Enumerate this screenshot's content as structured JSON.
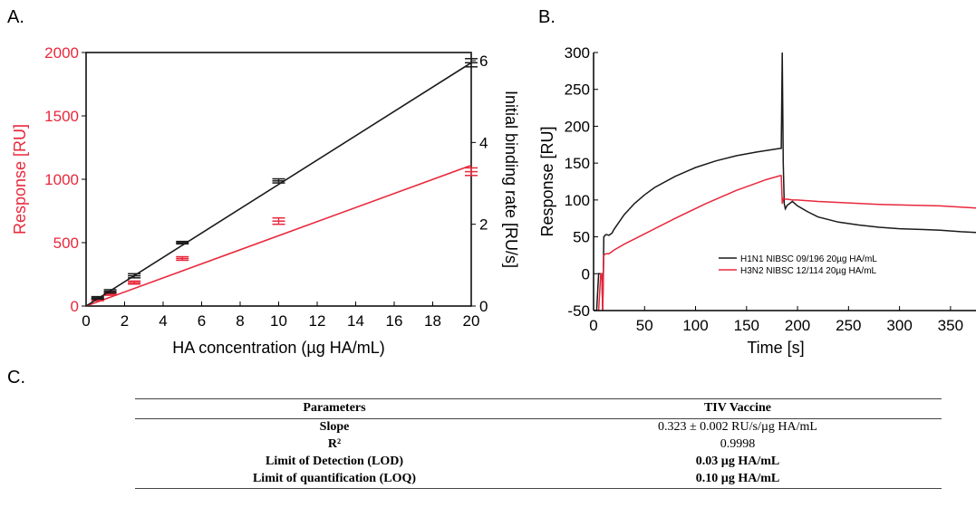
{
  "panels": {
    "a": "A.",
    "b": "B.",
    "c": "C."
  },
  "chart_data": [
    {
      "id": "A",
      "type": "line",
      "xlabel": "HA concentration (µg HA/mL)",
      "ylabel": "Response [RU]",
      "y2label": "Initial binding rate [RU/s]",
      "xlim": [
        0,
        20
      ],
      "ylim": [
        0,
        2000
      ],
      "y2lim": [
        0,
        6.2
      ],
      "xticks": [
        0,
        2,
        4,
        6,
        8,
        10,
        12,
        14,
        16,
        18,
        20
      ],
      "yticks": [
        0,
        500,
        1000,
        1500,
        2000
      ],
      "y2ticks": [
        0,
        2,
        4,
        6
      ],
      "colors": {
        "response": "#e8283c",
        "rate": "#1a1a1a"
      },
      "series": [
        {
          "axis": "left",
          "color": "#e8283c",
          "points": [
            {
              "x": 0.6,
              "y": 50,
              "err": 8
            },
            {
              "x": 1.25,
              "y": 95,
              "err": 10
            },
            {
              "x": 2.5,
              "y": 185,
              "err": 12
            },
            {
              "x": 5,
              "y": 375,
              "err": 14
            },
            {
              "x": 10,
              "y": 670,
              "err": 25
            },
            {
              "x": 20,
              "y": 1060,
              "err": 30
            }
          ],
          "fit": [
            [
              0,
              0
            ],
            [
              20,
              1110
            ]
          ]
        },
        {
          "axis": "right",
          "color": "#1a1a1a",
          "points": [
            {
              "x": 0.6,
              "y": 0.2,
              "err": 0.03
            },
            {
              "x": 1.25,
              "y": 0.36,
              "err": 0.04
            },
            {
              "x": 2.5,
              "y": 0.74,
              "err": 0.05
            },
            {
              "x": 5,
              "y": 1.55,
              "err": 0.03
            },
            {
              "x": 10,
              "y": 3.06,
              "err": 0.05
            },
            {
              "x": 20,
              "y": 5.95,
              "err": 0.1
            }
          ],
          "fit": [
            [
              0,
              0
            ],
            [
              20,
              5.95
            ]
          ]
        }
      ]
    },
    {
      "id": "B",
      "type": "line",
      "xlabel": "Time [s]",
      "ylabel": "Response [RU]",
      "xlim": [
        0,
        375
      ],
      "ylim": [
        -50,
        300
      ],
      "xticks": [
        0,
        50,
        100,
        150,
        200,
        250,
        300,
        350
      ],
      "yticks": [
        -50,
        0,
        50,
        100,
        150,
        200,
        250,
        300
      ],
      "legend_placement": "center-right",
      "series": [
        {
          "name": "H1N1 NIBSC 09/196 20µg HA/mL",
          "color": "#1a1a1a",
          "x": [
            0,
            3,
            5,
            8,
            9,
            10,
            12,
            13,
            15,
            18,
            20,
            25,
            30,
            40,
            50,
            60,
            80,
            100,
            120,
            140,
            160,
            183,
            184,
            185,
            186,
            187,
            188,
            190,
            195,
            200,
            210,
            220,
            240,
            260,
            280,
            300,
            320,
            340,
            360,
            375
          ],
          "y": [
            -50,
            -50,
            0,
            0,
            -50,
            50,
            53,
            53,
            52,
            55,
            60,
            70,
            80,
            95,
            107,
            117,
            132,
            144,
            153,
            160,
            165,
            170,
            170,
            300,
            150,
            95,
            88,
            93,
            98,
            92,
            84,
            77,
            70,
            66,
            63,
            61,
            60,
            59,
            57,
            56
          ]
        },
        {
          "name": "H3N2 NIBSC 12/114 20µg HA/mL",
          "color": "#e8283c",
          "x": [
            0,
            5,
            7,
            8,
            9,
            10,
            12,
            13,
            15,
            18,
            20,
            30,
            50,
            80,
            110,
            140,
            170,
            183,
            184,
            185,
            186,
            188,
            190,
            195,
            200,
            220,
            250,
            280,
            310,
            340,
            375
          ],
          "y": [
            -50,
            -50,
            0,
            0,
            -50,
            25,
            27,
            27,
            27,
            30,
            32,
            40,
            54,
            75,
            95,
            113,
            128,
            133,
            133,
            95,
            102,
            101,
            101,
            100,
            100,
            98,
            96,
            94,
            93,
            92,
            89
          ]
        }
      ]
    }
  ],
  "table": {
    "headers": [
      "Parameters",
      "TIV Vaccine"
    ],
    "rows": [
      [
        "Slope",
        "0.323 ± 0.002 RU/s/µg HA/mL"
      ],
      [
        "R²",
        "0.9998"
      ],
      [
        "Limit of Detection (LOD)",
        "0.03 µg HA/mL"
      ],
      [
        "Limit of quantification (LOQ)",
        "0.10 µg HA/mL"
      ]
    ],
    "bold_values": [
      false,
      false,
      true,
      true
    ]
  }
}
